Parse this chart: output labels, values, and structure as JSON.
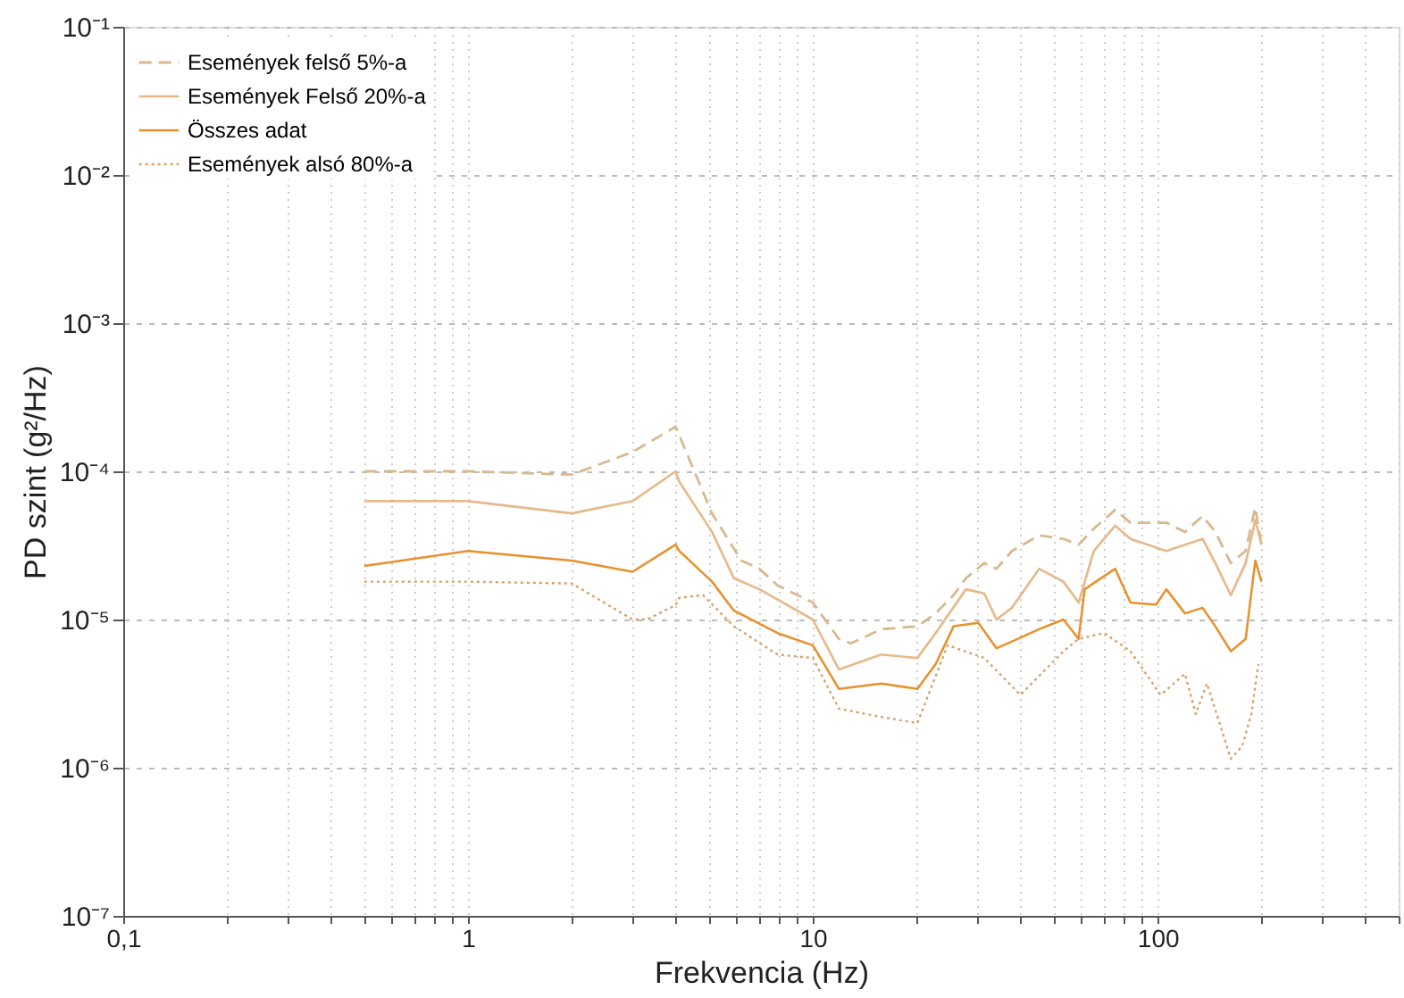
{
  "chart_data": {
    "type": "line",
    "xlabel": "Frekvencia (Hz)",
    "ylabel": "PD szint (g²/Hz)",
    "log": "xy",
    "grid": true,
    "legend": "top left",
    "xlim": [
      0.1,
      500
    ],
    "ylim": [
      1e-07,
      0.1
    ],
    "xticks": [
      {
        "value": 0.1,
        "label": "0,1"
      },
      {
        "value": 0.2,
        "label": null
      },
      {
        "value": 0.3,
        "label": null
      },
      {
        "value": 0.4,
        "label": null
      },
      {
        "value": 0.5,
        "label": null
      },
      {
        "value": 0.6,
        "label": null
      },
      {
        "value": 0.7,
        "label": null
      },
      {
        "value": 0.8,
        "label": null
      },
      {
        "value": 0.9,
        "label": null
      },
      1,
      {
        "value": 2,
        "label": null
      },
      {
        "value": 3,
        "label": null
      },
      {
        "value": 4,
        "label": null
      },
      {
        "value": 5,
        "label": null
      },
      {
        "value": 6,
        "label": null
      },
      {
        "value": 7,
        "label": null
      },
      {
        "value": 8,
        "label": null
      },
      {
        "value": 9,
        "label": null
      },
      10,
      {
        "value": 20,
        "label": null
      },
      {
        "value": 30,
        "label": null
      },
      {
        "value": 40,
        "label": null
      },
      {
        "value": 50,
        "label": null
      },
      {
        "value": 60,
        "label": null
      },
      {
        "value": 70,
        "label": null
      },
      {
        "value": 80,
        "label": null
      },
      {
        "value": 90,
        "label": null
      },
      100,
      {
        "value": 200,
        "label": null
      },
      {
        "value": 300,
        "label": null
      },
      {
        "value": 400,
        "label": null
      },
      {
        "value": 500,
        "label": null
      }
    ],
    "yticks": [
      {
        "value": 1e-07,
        "label": "10⁻⁷"
      },
      {
        "value": 1e-06,
        "label": "10⁻⁶"
      },
      {
        "value": 1e-05,
        "label": "10⁻⁵"
      },
      {
        "value": 0.0001,
        "label": "10⁻⁴"
      },
      {
        "value": 0.001,
        "label": "10⁻³"
      },
      {
        "value": 0.01,
        "label": "10⁻²"
      },
      {
        "value": 0.1,
        "label": "10⁻¹"
      }
    ],
    "series": [
      {
        "name": "Események felső 5%-a",
        "color": "#d9b88f",
        "line_style": "dashed",
        "x": [
          0.5,
          1,
          2,
          3,
          4,
          5.1,
          6.2,
          7,
          7.9,
          10,
          11.9,
          12.9,
          15.8,
          20.1,
          22.7,
          25.6,
          27.8,
          31.4,
          34.1,
          37.8,
          45.3,
          53.3,
          59,
          65.3,
          75.3,
          83.4,
          106,
          120,
          135,
          147,
          163,
          180,
          192,
          200
        ],
        "values": [
          0.0001,
          0.0001,
          9.5e-05,
          0.000135,
          0.0002,
          5.2e-05,
          2.5e-05,
          2.2e-05,
          1.7e-05,
          1.3e-05,
          7.4e-06,
          6.9e-06,
          8.6e-06,
          9e-06,
          1.1e-05,
          1.46e-05,
          1.9e-05,
          2.4e-05,
          2.2e-05,
          2.9e-05,
          3.7e-05,
          3.5e-05,
          3.2e-05,
          4.1e-05,
          5.5e-05,
          4.5e-05,
          4.5e-05,
          3.9e-05,
          5e-05,
          3.9e-05,
          2.4e-05,
          2.9e-05,
          5.7e-05,
          3.2e-05
        ]
      },
      {
        "name": "Események Felső 20%-a",
        "color": "#e6b98a",
        "line_style": "solid",
        "x": [
          0.5,
          1,
          2,
          3,
          4,
          4.1,
          5.1,
          5.9,
          7,
          10,
          11.9,
          15.8,
          20.1,
          22.7,
          27.8,
          31.4,
          34.1,
          37.8,
          45.3,
          53.3,
          59,
          65.3,
          75.3,
          83.4,
          106,
          120,
          135,
          147,
          163,
          180,
          192,
          200
        ],
        "values": [
          6.3e-05,
          6.3e-05,
          5.2e-05,
          6.3e-05,
          0.0001,
          8.5e-05,
          3.9e-05,
          1.9e-05,
          1.6e-05,
          1e-05,
          4.6e-06,
          5.8e-06,
          5.5e-06,
          8.1e-06,
          1.6e-05,
          1.5e-05,
          1e-05,
          1.2e-05,
          2.2e-05,
          1.8e-05,
          1.3e-05,
          2.9e-05,
          4.3e-05,
          3.5e-05,
          2.9e-05,
          3.2e-05,
          3.5e-05,
          2.4e-05,
          1.46e-05,
          2.4e-05,
          4.7e-05,
          3.2e-05
        ]
      },
      {
        "name": "Összes adat",
        "color": "#e8902c",
        "line_style": "solid",
        "x": [
          0.5,
          1,
          2,
          3,
          4,
          4.1,
          5.1,
          5.9,
          7.9,
          10,
          11.9,
          15.8,
          20.1,
          22.7,
          25.6,
          30.2,
          34.1,
          37.8,
          45.3,
          53.3,
          59,
          61.4,
          75.3,
          83.4,
          99,
          106,
          120,
          135,
          147,
          163,
          180,
          192,
          200
        ],
        "values": [
          2.3e-05,
          2.9e-05,
          2.5e-05,
          2.1e-05,
          3.2e-05,
          2.9e-05,
          1.8e-05,
          1.15e-05,
          8.1e-06,
          6.7e-06,
          3.4e-06,
          3.7e-06,
          3.4e-06,
          5e-06,
          9e-06,
          9.5e-06,
          6.4e-06,
          7.1e-06,
          8.6e-06,
          1e-05,
          7.4e-06,
          1.6e-05,
          2.2e-05,
          1.3e-05,
          1.26e-05,
          1.6e-05,
          1.1e-05,
          1.2e-05,
          9e-06,
          6.1e-06,
          7.4e-06,
          2.5e-05,
          1.8e-05
        ]
      },
      {
        "name": "Események alsó 80%-a",
        "color": "#d9a066",
        "line_style": "dotted",
        "x": [
          0.5,
          1,
          2,
          3,
          3.3,
          4,
          4.1,
          4.8,
          5.9,
          7.9,
          10,
          11.9,
          15.8,
          20.1,
          24.6,
          31.4,
          40,
          53.3,
          59,
          70,
          83.4,
          102,
          120,
          129,
          139,
          163,
          176,
          187,
          196
        ],
        "values": [
          1.8e-05,
          1.8e-05,
          1.75e-05,
          1e-05,
          1e-05,
          1.25e-05,
          1.4e-05,
          1.46e-05,
          9e-06,
          5.8e-06,
          5.5e-06,
          2.5e-06,
          2.2e-06,
          2e-06,
          6.7e-06,
          5.5e-06,
          3.1e-06,
          6.1e-06,
          7.4e-06,
          8.1e-06,
          6.1e-06,
          3.1e-06,
          4.3e-06,
          2.3e-06,
          3.7e-06,
          1.15e-06,
          1.4e-06,
          2.3e-06,
          5e-06
        ]
      }
    ]
  }
}
